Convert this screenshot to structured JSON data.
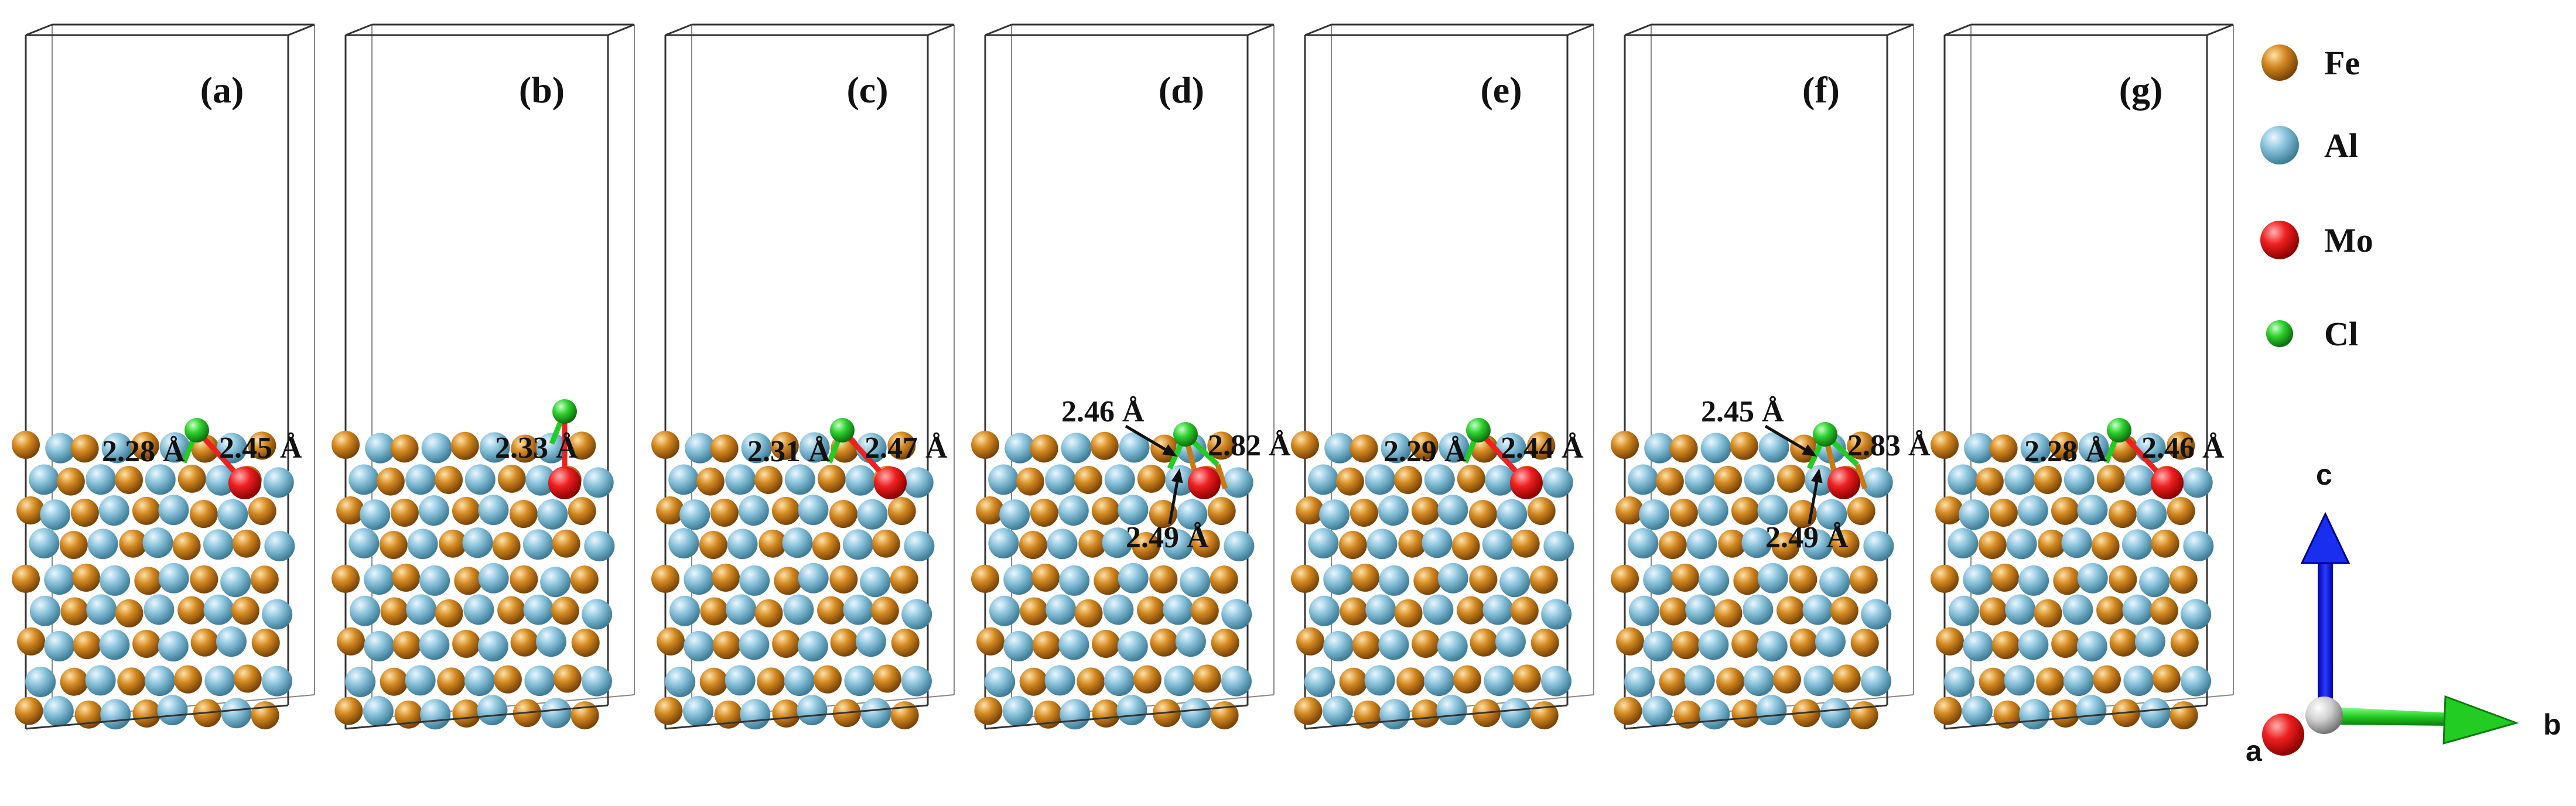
{
  "figure": {
    "panels": [
      {
        "label": "(a)",
        "distances": [
          "2.28 Å",
          "2.45 Å"
        ]
      },
      {
        "label": "(b)",
        "distances": [
          "2.33 Å"
        ]
      },
      {
        "label": "(c)",
        "distances": [
          "2.31 Å",
          "2.47 Å"
        ]
      },
      {
        "label": "(d)",
        "distances": [
          "2.46 Å",
          "2.82 Å",
          "2.49 Å"
        ]
      },
      {
        "label": "(e)",
        "distances": [
          "2.29 Å",
          "2.44 Å"
        ]
      },
      {
        "label": "(f)",
        "distances": [
          "2.45 Å",
          "2.83 Å",
          "2.49 Å"
        ]
      },
      {
        "label": "(g)",
        "distances": [
          "2.28 Å",
          "2.46 Å"
        ]
      }
    ],
    "legend": [
      {
        "name": "Fe",
        "color": "#c87a14"
      },
      {
        "name": "Al",
        "color": "#7fb9d2"
      },
      {
        "name": "Mo",
        "color": "#e31a1a"
      },
      {
        "name": "Cl",
        "color": "#22cc22"
      }
    ],
    "axes": {
      "a": "a",
      "b": "b",
      "c": "c"
    }
  }
}
